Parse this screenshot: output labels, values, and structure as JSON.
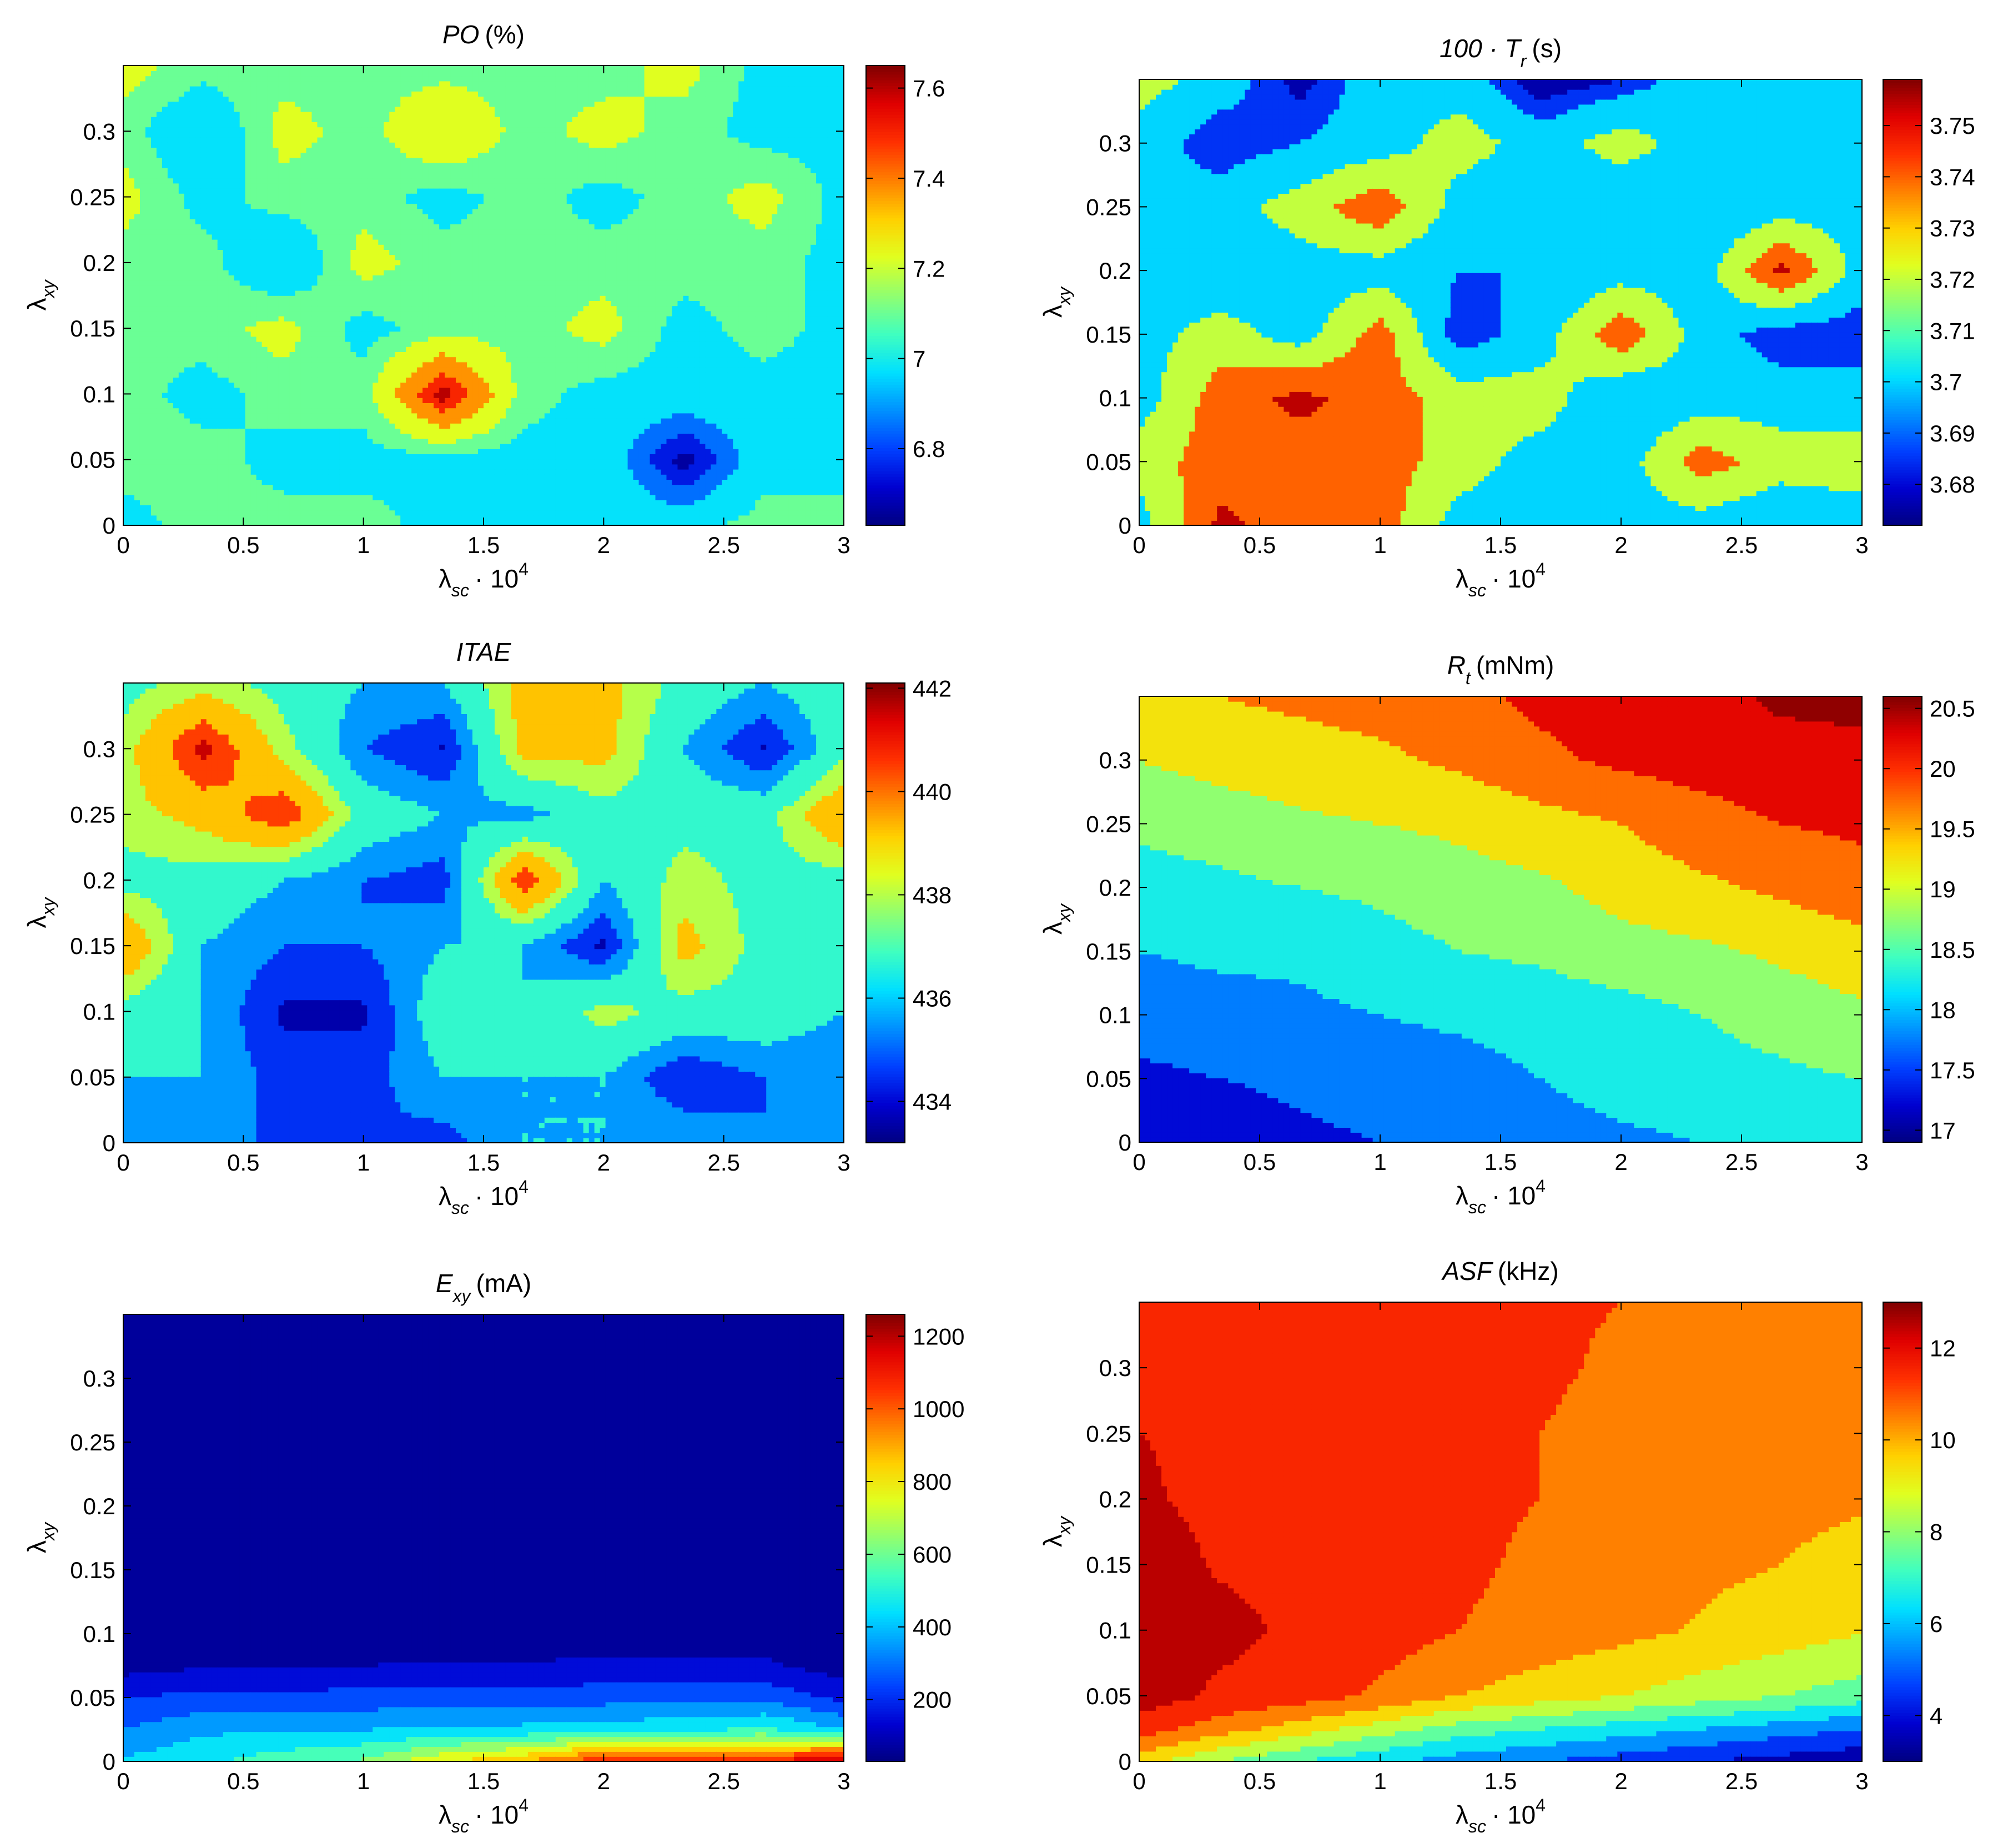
{
  "colormap": [
    "#000080",
    "#0000d0",
    "#0040ff",
    "#0090ff",
    "#00e0ff",
    "#40ffbf",
    "#90ff70",
    "#e0ff20",
    "#ffd000",
    "#ff8000",
    "#ff3000",
    "#e00000",
    "#800000"
  ],
  "charts": [
    {
      "id": "po",
      "title_main": "PO",
      "title_sub": "",
      "title_unit": "(%)",
      "italic": true,
      "xlabel_main": "λ",
      "xlabel_sub": "sc",
      "xlabel_rest": "· 10",
      "xlabel_sup": "4",
      "ylabel_main": "λ",
      "ylabel_sub": "xy",
      "xticks": [
        "0",
        "0.5",
        "1",
        "1.5",
        "2",
        "2.5",
        "3"
      ],
      "yticks": [
        "0",
        "0.05",
        "0.1",
        "0.15",
        "0.2",
        "0.25",
        "0.3"
      ],
      "cbar_ticks": [
        "6.8",
        "7",
        "7.2",
        "7.4",
        "7.6"
      ]
    },
    {
      "id": "tr",
      "title_main": "100 · T",
      "title_sub": "r",
      "title_unit": "(s)",
      "italic": true,
      "xlabel_main": "λ",
      "xlabel_sub": "sc",
      "xlabel_rest": "· 10",
      "xlabel_sup": "4",
      "ylabel_main": "λ",
      "ylabel_sub": "xy",
      "xticks": [
        "0",
        "0.5",
        "1",
        "1.5",
        "2",
        "2.5",
        "3"
      ],
      "yticks": [
        "0",
        "0.05",
        "0.1",
        "0.15",
        "0.2",
        "0.25",
        "0.3"
      ],
      "cbar_ticks": [
        "3.68",
        "3.69",
        "3.7",
        "3.71",
        "3.72",
        "3.73",
        "3.74",
        "3.75"
      ]
    },
    {
      "id": "itae",
      "title_main": "ITAE",
      "title_sub": "",
      "title_unit": "",
      "italic": true,
      "xlabel_main": "λ",
      "xlabel_sub": "sc",
      "xlabel_rest": "· 10",
      "xlabel_sup": "4",
      "ylabel_main": "λ",
      "ylabel_sub": "xy",
      "xticks": [
        "0",
        "0.5",
        "1",
        "1.5",
        "2",
        "2.5",
        "3"
      ],
      "yticks": [
        "0",
        "0.05",
        "0.1",
        "0.15",
        "0.2",
        "0.25",
        "0.3"
      ],
      "cbar_ticks": [
        "434",
        "436",
        "438",
        "440",
        "442"
      ]
    },
    {
      "id": "rt",
      "title_main": "R",
      "title_sub": "t",
      "title_unit": "(mNm)",
      "italic": true,
      "xlabel_main": "λ",
      "xlabel_sub": "sc",
      "xlabel_rest": "· 10",
      "xlabel_sup": "4",
      "ylabel_main": "λ",
      "ylabel_sub": "xy",
      "xticks": [
        "0",
        "0.5",
        "1",
        "1.5",
        "2",
        "2.5",
        "3"
      ],
      "yticks": [
        "0",
        "0.05",
        "0.1",
        "0.15",
        "0.2",
        "0.25",
        "0.3"
      ],
      "cbar_ticks": [
        "17",
        "17.5",
        "18",
        "18.5",
        "19",
        "19.5",
        "20",
        "20.5"
      ]
    },
    {
      "id": "exy",
      "title_main": "E",
      "title_sub": "xy",
      "title_unit": "(mA)",
      "italic": true,
      "xlabel_main": "λ",
      "xlabel_sub": "sc",
      "xlabel_rest": "· 10",
      "xlabel_sup": "4",
      "ylabel_main": "λ",
      "ylabel_sub": "xy",
      "xticks": [
        "0",
        "0.5",
        "1",
        "1.5",
        "2",
        "2.5",
        "3"
      ],
      "yticks": [
        "0",
        "0.05",
        "0.1",
        "0.15",
        "0.2",
        "0.25",
        "0.3"
      ],
      "cbar_ticks": [
        "200",
        "400",
        "600",
        "800",
        "1000",
        "1200"
      ]
    },
    {
      "id": "asf",
      "title_main": "ASF",
      "title_sub": "",
      "title_unit": "(kHz)",
      "italic": true,
      "xlabel_main": "λ",
      "xlabel_sub": "sc",
      "xlabel_rest": "· 10",
      "xlabel_sup": "4",
      "ylabel_main": "λ",
      "ylabel_sub": "xy",
      "xticks": [
        "0",
        "0.5",
        "1",
        "1.5",
        "2",
        "2.5",
        "3"
      ],
      "yticks": [
        "0",
        "0.05",
        "0.1",
        "0.15",
        "0.2",
        "0.25",
        "0.3"
      ],
      "cbar_ticks": [
        "4",
        "6",
        "8",
        "10",
        "12"
      ]
    }
  ],
  "chart_data": [
    {
      "type": "heatmap",
      "title": "PO (%)",
      "xlabel": "λsc · 10^4",
      "ylabel": "λxy",
      "xlim": [
        0,
        3
      ],
      "ylim": [
        0,
        0.35
      ],
      "clim": [
        6.63,
        7.65
      ],
      "x": [
        0,
        0.333,
        0.667,
        1,
        1.333,
        1.667,
        2,
        2.333,
        2.667,
        3
      ],
      "y": [
        0,
        0.05,
        0.1,
        0.15,
        0.2,
        0.25,
        0.3,
        0.35
      ],
      "z": [
        [
          7.0,
          7.1,
          7.1,
          7.1,
          7.0,
          7.0,
          7.0,
          7.0,
          7.1,
          7.1
        ],
        [
          7.1,
          7.1,
          7.0,
          7.0,
          7.0,
          7.0,
          7.0,
          6.65,
          7.0,
          7.0
        ],
        [
          7.1,
          7.0,
          7.1,
          7.1,
          7.62,
          7.1,
          7.0,
          7.0,
          7.0,
          7.0
        ],
        [
          7.1,
          7.1,
          7.2,
          7.0,
          7.1,
          7.1,
          7.2,
          7.0,
          7.1,
          7.0
        ],
        [
          7.1,
          7.1,
          6.9,
          7.2,
          7.1,
          7.1,
          7.1,
          7.1,
          7.1,
          7.0
        ],
        [
          7.2,
          7.0,
          7.1,
          7.1,
          7.0,
          7.1,
          7.0,
          7.1,
          7.2,
          7.0
        ],
        [
          7.1,
          6.9,
          7.2,
          7.1,
          7.3,
          7.1,
          7.2,
          7.1,
          7.0,
          7.0
        ],
        [
          7.2,
          7.1,
          7.1,
          7.1,
          7.1,
          7.1,
          7.1,
          7.2,
          7.0,
          7.0
        ]
      ],
      "levels": [
        6.7,
        6.8,
        6.9,
        7.05,
        7.15,
        7.3,
        7.45,
        7.55
      ]
    },
    {
      "type": "heatmap",
      "title": "100 · Tr (s)",
      "xlabel": "λsc · 10^4",
      "ylabel": "λxy",
      "xlim": [
        0,
        3
      ],
      "ylim": [
        0,
        0.35
      ],
      "clim": [
        3.672,
        3.759
      ],
      "x": [
        0,
        0.333,
        0.667,
        1,
        1.333,
        1.667,
        2,
        2.333,
        2.667,
        3
      ],
      "y": [
        0,
        0.05,
        0.1,
        0.15,
        0.2,
        0.25,
        0.3,
        0.35
      ],
      "z": [
        [
          3.7,
          3.755,
          3.74,
          3.74,
          3.7,
          3.7,
          3.7,
          3.7,
          3.69,
          3.7
        ],
        [
          3.72,
          3.74,
          3.74,
          3.74,
          3.72,
          3.7,
          3.7,
          3.74,
          3.72,
          3.72
        ],
        [
          3.7,
          3.74,
          3.755,
          3.74,
          3.72,
          3.72,
          3.69,
          3.7,
          3.7,
          3.7
        ],
        [
          3.7,
          3.72,
          3.7,
          3.74,
          3.68,
          3.7,
          3.745,
          3.7,
          3.68,
          3.68
        ],
        [
          3.7,
          3.69,
          3.7,
          3.7,
          3.69,
          3.69,
          3.7,
          3.7,
          3.755,
          3.7
        ],
        [
          3.7,
          3.7,
          3.72,
          3.745,
          3.7,
          3.69,
          3.69,
          3.69,
          3.7,
          3.7
        ],
        [
          3.7,
          3.68,
          3.69,
          3.7,
          3.72,
          3.7,
          3.72,
          3.7,
          3.7,
          3.7
        ],
        [
          3.72,
          3.7,
          3.675,
          3.7,
          3.7,
          3.67,
          3.68,
          3.7,
          3.7,
          3.7
        ]
      ],
      "levels": [
        3.68,
        3.69,
        3.71,
        3.73,
        3.75
      ]
    },
    {
      "type": "heatmap",
      "title": "ITAE",
      "xlabel": "λsc · 10^4",
      "ylabel": "λxy",
      "xlim": [
        0,
        3
      ],
      "ylim": [
        0,
        0.35
      ],
      "clim": [
        433.2,
        442.1
      ],
      "x": [
        0,
        0.333,
        0.667,
        1,
        1.333,
        1.667,
        2,
        2.333,
        2.667,
        3
      ],
      "y": [
        0,
        0.05,
        0.1,
        0.15,
        0.2,
        0.25,
        0.3,
        0.35
      ],
      "z": [
        [
          436,
          435,
          435,
          435,
          434.5,
          436,
          436,
          436,
          435,
          436
        ],
        [
          436,
          436,
          434.5,
          434.5,
          436,
          436,
          436,
          434,
          435,
          435
        ],
        [
          437,
          436,
          433.8,
          433.8,
          437,
          436,
          438,
          437,
          437,
          436
        ],
        [
          440,
          436,
          435,
          435,
          436,
          436,
          433.8,
          439,
          437,
          437
        ],
        [
          437,
          437,
          436,
          435,
          434.5,
          441,
          436,
          438,
          437,
          437
        ],
        [
          438,
          439,
          441,
          437,
          436,
          435.5,
          437,
          437,
          437,
          440
        ],
        [
          438,
          441.5,
          438,
          435,
          433.9,
          439,
          439,
          436,
          433.9,
          437
        ],
        [
          437,
          438,
          437,
          436,
          436,
          439,
          439,
          437,
          436,
          437
        ]
      ],
      "levels": [
        434,
        435,
        436,
        437.5,
        438.5,
        440,
        441
      ]
    },
    {
      "type": "heatmap",
      "title": "Rt (mNm)",
      "xlabel": "λsc · 10^4",
      "ylabel": "λxy",
      "xlim": [
        0,
        3
      ],
      "ylim": [
        0,
        0.35
      ],
      "clim": [
        16.9,
        20.6
      ],
      "x": [
        0,
        0.333,
        0.667,
        1,
        1.333,
        1.667,
        2,
        2.333,
        2.667,
        3
      ],
      "y": [
        0,
        0.05,
        0.1,
        0.15,
        0.2,
        0.25,
        0.3,
        0.35
      ],
      "z": [
        [
          17.1,
          17.2,
          17.4,
          17.5,
          17.7,
          17.8,
          17.9,
          18.0,
          18.1,
          18.3
        ],
        [
          17.4,
          17.5,
          17.6,
          17.7,
          17.8,
          18.0,
          18.2,
          18.3,
          18.4,
          18.5
        ],
        [
          17.7,
          17.8,
          17.9,
          18.0,
          18.1,
          18.2,
          18.3,
          18.5,
          18.7,
          18.9
        ],
        [
          18.0,
          18.1,
          18.1,
          18.3,
          18.5,
          18.6,
          18.8,
          18.9,
          19.1,
          19.3
        ],
        [
          18.3,
          18.4,
          18.5,
          18.6,
          18.8,
          18.9,
          19.2,
          19.4,
          19.6,
          19.8
        ],
        [
          18.6,
          18.7,
          18.9,
          19.0,
          19.1,
          19.3,
          19.5,
          19.8,
          20.0,
          20.1
        ],
        [
          19.0,
          19.2,
          19.3,
          19.4,
          19.6,
          19.9,
          20.1,
          20.2,
          20.3,
          20.4
        ],
        [
          19.3,
          19.5,
          19.6,
          19.7,
          19.9,
          20.1,
          20.2,
          20.3,
          20.6,
          20.6
        ]
      ],
      "levels": [
        17.0,
        17.5,
        18.0,
        18.5,
        19.0,
        19.5,
        20.0,
        20.5
      ]
    },
    {
      "type": "heatmap",
      "title": "Exy (mA)",
      "xlabel": "λsc · 10^4",
      "ylabel": "λxy",
      "xlim": [
        0,
        3
      ],
      "ylim": [
        0,
        0.35
      ],
      "clim": [
        30,
        1260
      ],
      "x": [
        0,
        0.333,
        0.667,
        1,
        1.333,
        1.667,
        2,
        2.333,
        2.667,
        3
      ],
      "y": [
        0,
        0.025,
        0.05,
        0.075,
        0.1,
        0.35
      ],
      "z": [
        [
          420,
          480,
          560,
          620,
          790,
          900,
          1100,
          1140,
          1100,
          1250
        ],
        [
          300,
          380,
          390,
          400,
          420,
          430,
          450,
          480,
          520,
          400
        ],
        [
          200,
          230,
          230,
          240,
          240,
          250,
          260,
          270,
          270,
          170
        ],
        [
          60,
          90,
          90,
          100,
          110,
          110,
          120,
          120,
          120,
          50
        ],
        [
          40,
          40,
          40,
          40,
          40,
          40,
          40,
          40,
          40,
          40
        ],
        [
          40,
          40,
          40,
          40,
          40,
          40,
          40,
          40,
          40,
          40
        ]
      ],
      "levels": [
        100,
        200,
        300,
        400,
        500,
        600,
        700,
        800,
        900,
        1000,
        1100,
        1200
      ]
    },
    {
      "type": "heatmap",
      "title": "ASF (kHz)",
      "xlabel": "λsc · 10^4",
      "ylabel": "λxy",
      "xlim": [
        0,
        3
      ],
      "ylim": [
        0,
        0.35
      ],
      "clim": [
        3.0,
        13.0
      ],
      "x": [
        0,
        0.333,
        0.667,
        1,
        1.333,
        1.667,
        2,
        2.333,
        2.667,
        3
      ],
      "y": [
        0,
        0.025,
        0.05,
        0.1,
        0.15,
        0.2,
        0.25,
        0.3,
        0.35
      ],
      "z": [
        [
          9.5,
          8.0,
          7.0,
          6.2,
          5.5,
          5.0,
          4.5,
          4.0,
          3.6,
          3.2
        ],
        [
          11.5,
          10.5,
          9.5,
          8.5,
          7.5,
          7.0,
          6.5,
          6.0,
          5.5,
          5.0
        ],
        [
          12.6,
          11.8,
          11.5,
          10.8,
          10.0,
          9.5,
          9.0,
          8.5,
          8.0,
          7.5
        ],
        [
          12.6,
          12.3,
          11.8,
          11.5,
          11.0,
          10.6,
          10.3,
          9.9,
          9.5,
          9.1
        ],
        [
          12.5,
          11.9,
          11.7,
          11.4,
          11.2,
          10.8,
          10.4,
          10.2,
          10.0,
          9.7
        ],
        [
          12.1,
          11.8,
          11.7,
          11.4,
          11.2,
          11.0,
          10.6,
          10.4,
          10.2,
          10.1
        ],
        [
          12.0,
          11.9,
          11.7,
          11.4,
          11.2,
          11.0,
          10.8,
          10.4,
          10.3,
          10.2
        ],
        [
          12.0,
          11.9,
          11.8,
          11.2,
          11.2,
          11.1,
          10.9,
          10.4,
          10.2,
          10.2
        ],
        [
          12.0,
          11.9,
          11.8,
          11.2,
          11.1,
          11.1,
          11.0,
          10.5,
          10.3,
          10.2
        ]
      ],
      "levels": [
        4,
        5,
        6,
        7,
        8,
        9,
        10,
        11,
        12
      ]
    }
  ]
}
